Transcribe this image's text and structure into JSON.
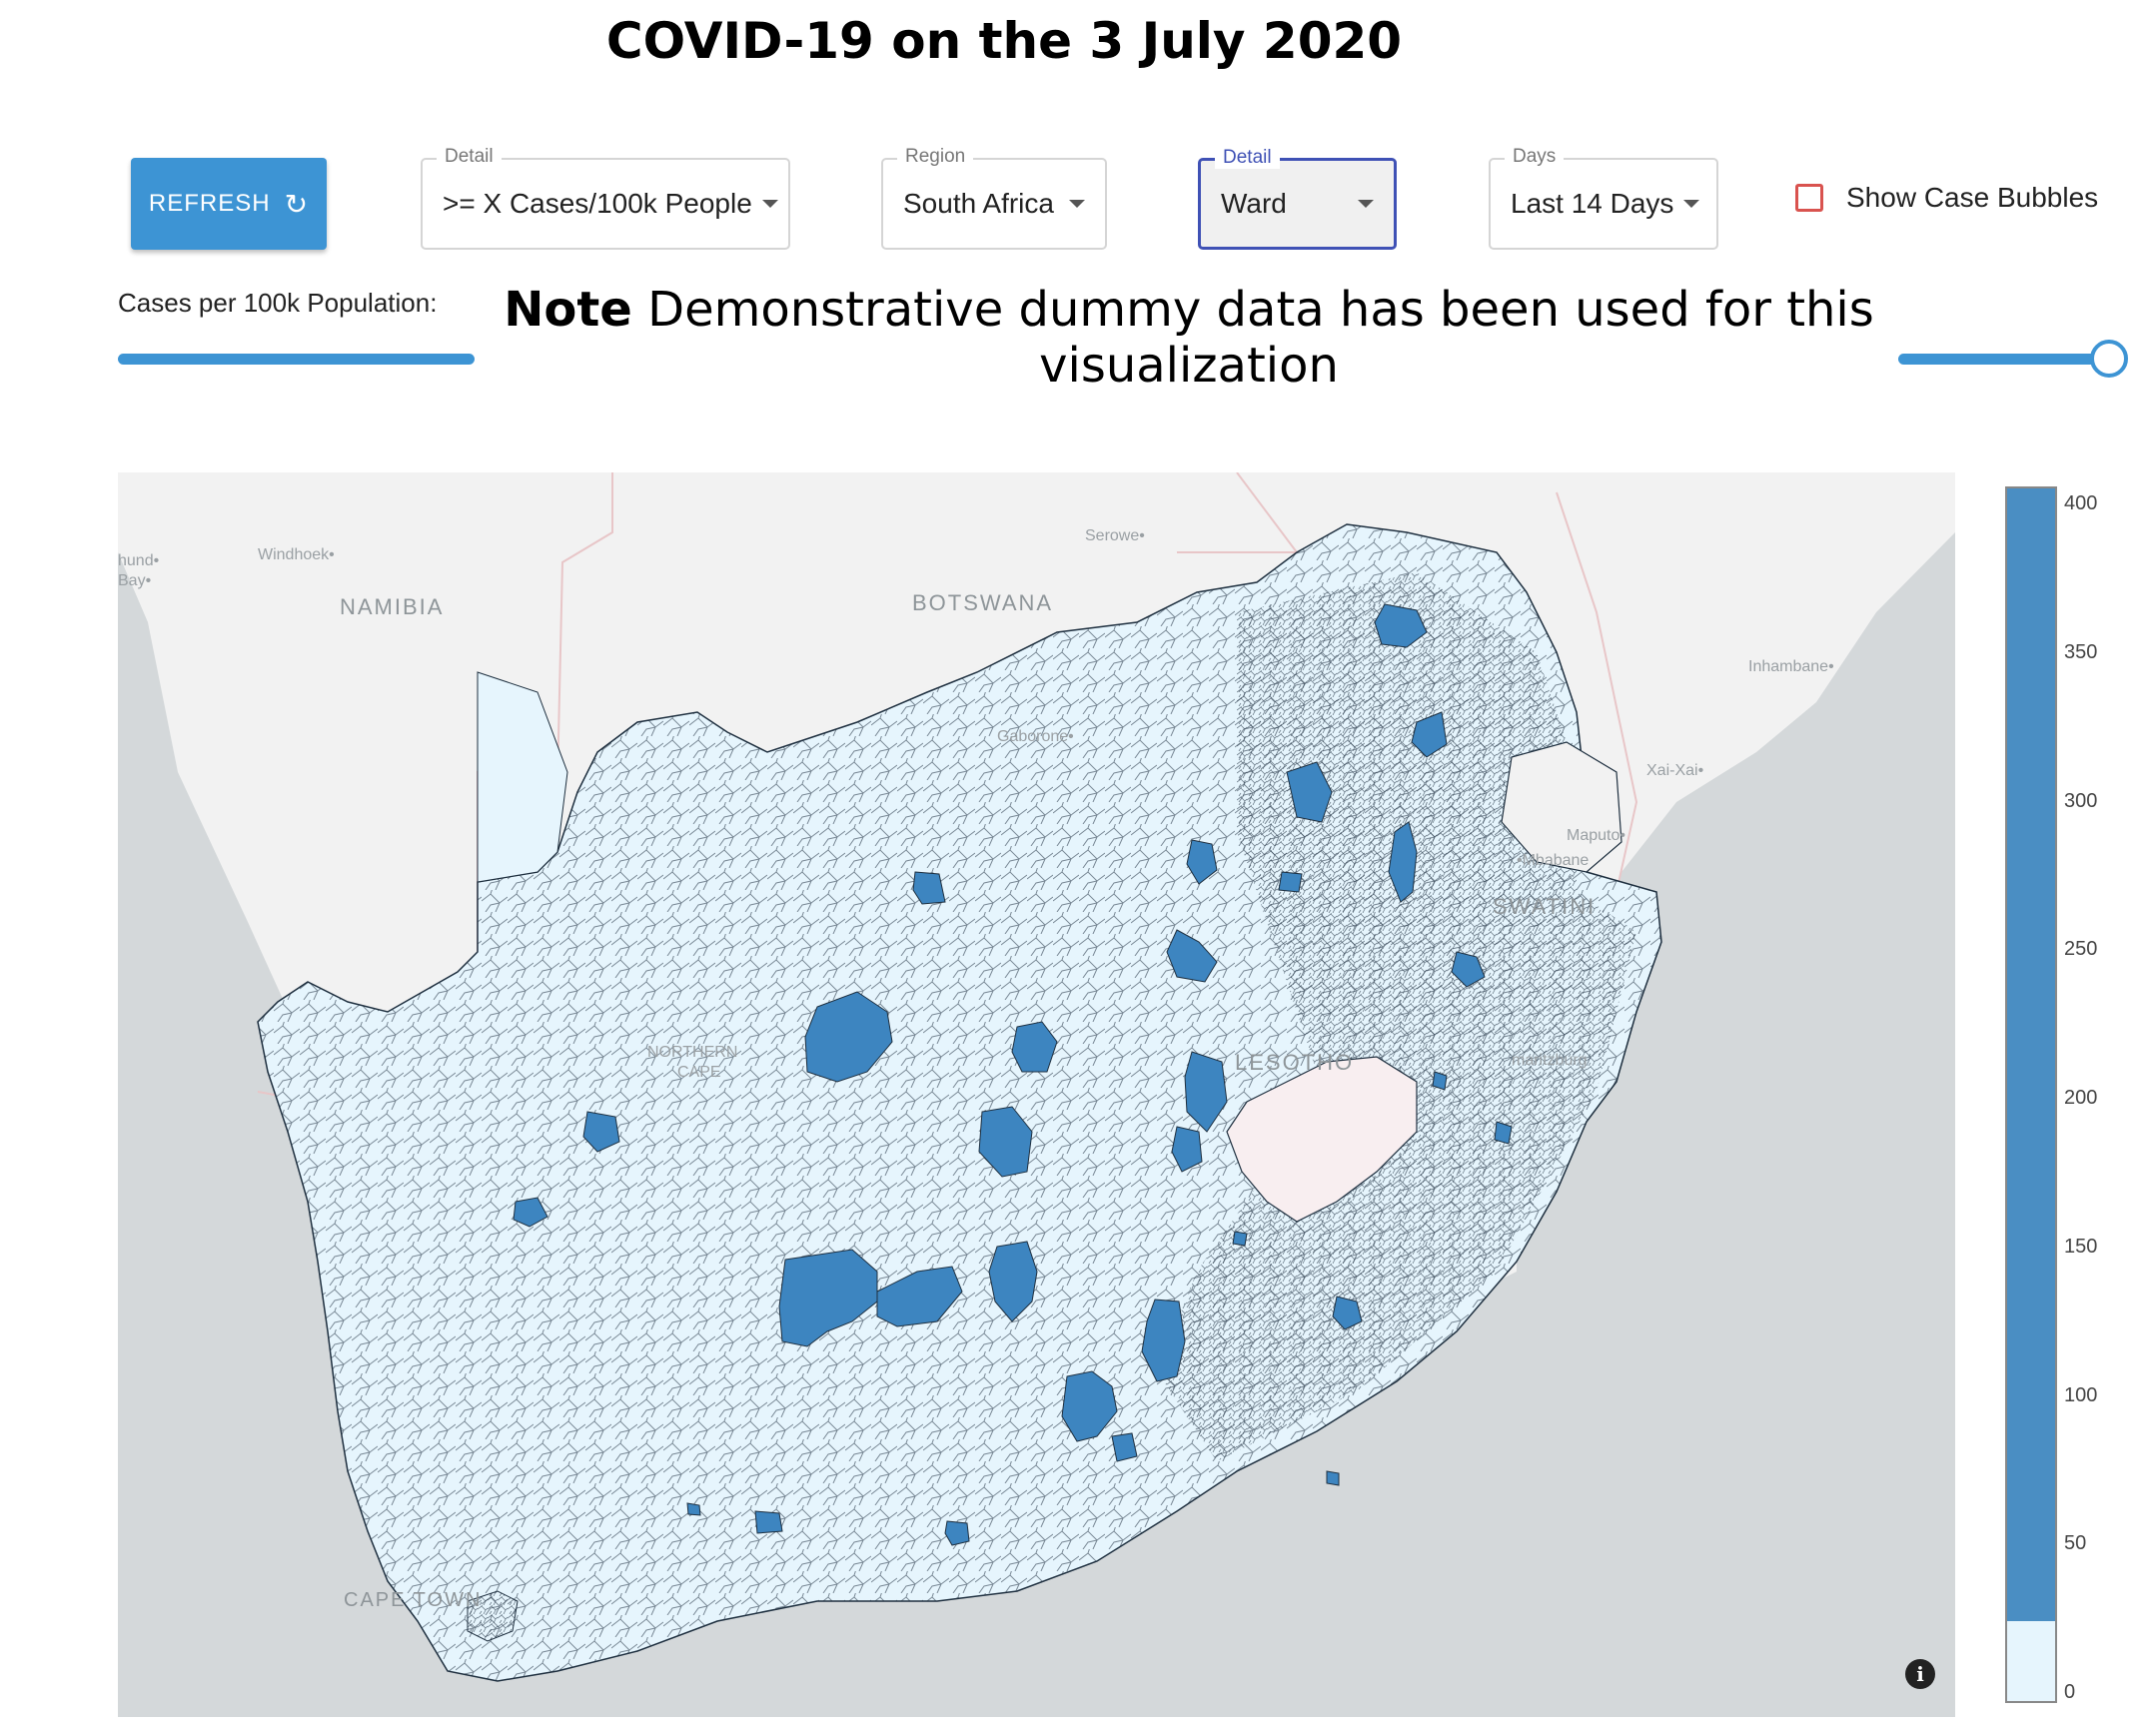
{
  "title": "COVID-19 on the 3 July 2020",
  "toolbar": {
    "refresh_label": "REFRESH",
    "detail": {
      "legend": "Detail",
      "value": ">= X Cases/100k People"
    },
    "region": {
      "legend": "Region",
      "value": "South Africa"
    },
    "detail2": {
      "legend": "Detail",
      "value": "Ward"
    },
    "days": {
      "legend": "Days",
      "value": "Last 14 Days"
    },
    "bubbles_label": "Show Case Bubbles",
    "bubbles_checked": false
  },
  "slider": {
    "label": "Cases per 100k Population:"
  },
  "note": {
    "bold": "Note",
    "text": " Demonstrative dummy data has been used for this visualization"
  },
  "map": {
    "labels": {
      "windhoek": "Windhoek•",
      "walvis1": "hund•",
      "walvis2": "Bay•",
      "serowe": "Serowe•",
      "gaborone": "Gaborone•",
      "inhambane": "Inhambane•",
      "xaixai": "Xai-Xai•",
      "maputo": "Maputo•",
      "mbabane": "•Mbabane",
      "pmb": "maritzburg",
      "northern_cape1": "NORTHERN",
      "northern_cape2": "CAPE",
      "cape_town": "CAPE TOWN"
    },
    "countries": {
      "namibia": "NAMIBIA",
      "botswana": "BOTSWANA",
      "lesotho": "LESOTHO",
      "eswatini": "SWATINI"
    },
    "colors": {
      "ocean": "#d4d8da",
      "land": "#f2f2f2",
      "low": "#e6f5fd",
      "high": "#3d85c0",
      "border": "#1e2f3f"
    }
  },
  "colorbar": {
    "ticks": [
      "400",
      "350",
      "300",
      "250",
      "200",
      "150",
      "100",
      "50",
      "0"
    ],
    "threshold": 25,
    "max": 415,
    "low_color": "#e6f5fd",
    "high_color": "#4a8ec3"
  }
}
